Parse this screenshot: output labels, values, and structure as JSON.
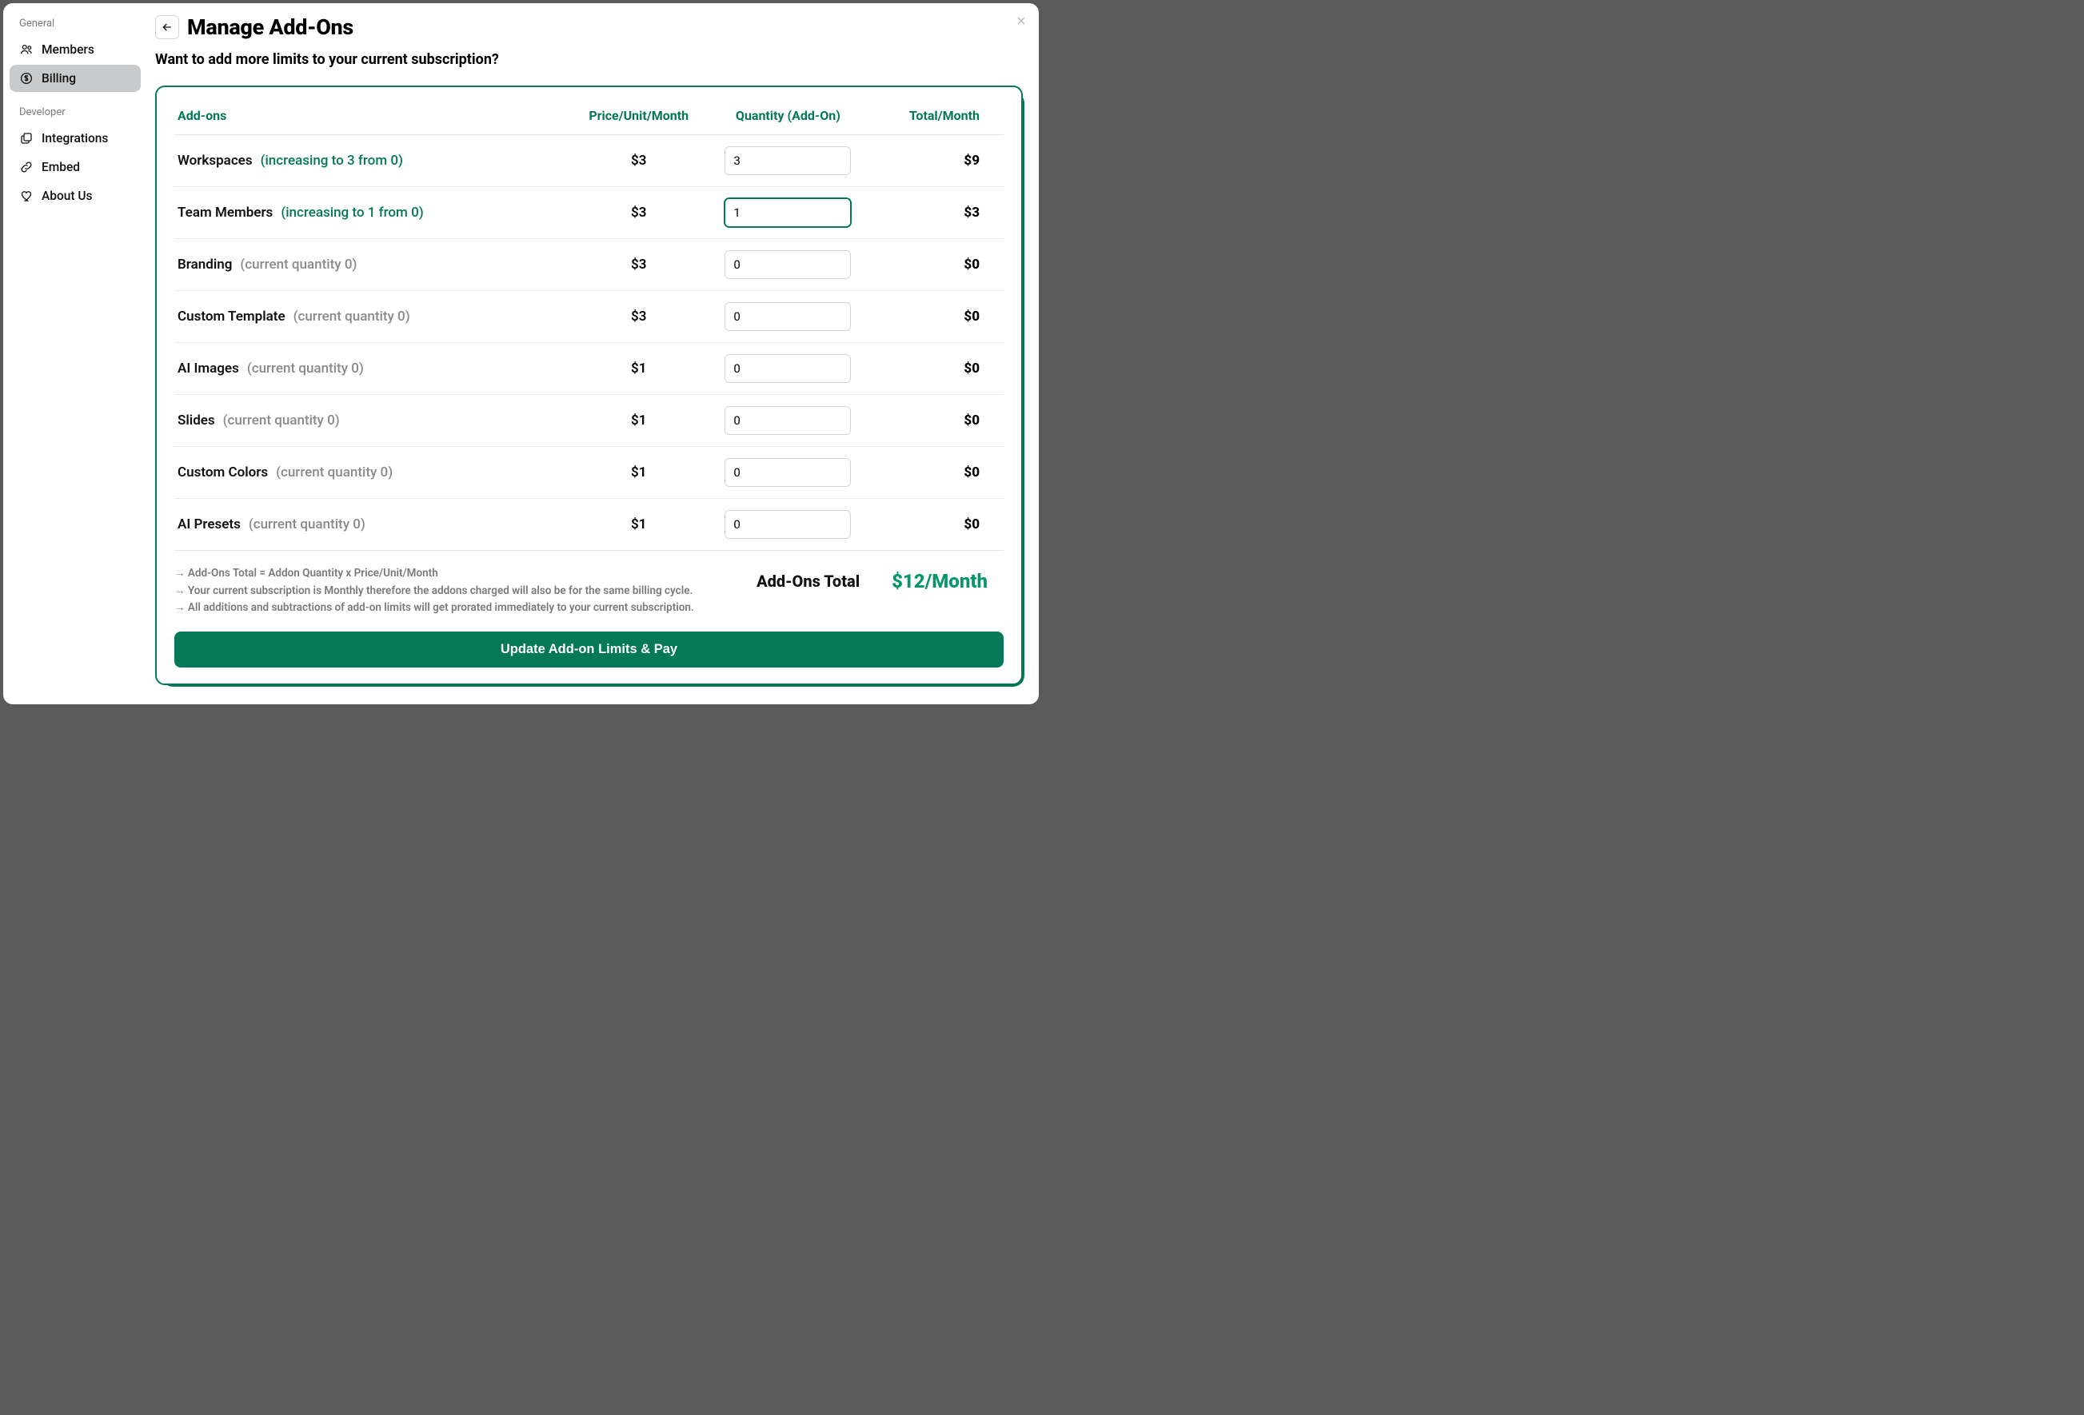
{
  "sidebar": {
    "sections": [
      {
        "label": "General",
        "items": [
          {
            "id": "members",
            "label": "Members",
            "icon": "users-icon",
            "active": false
          },
          {
            "id": "billing",
            "label": "Billing",
            "icon": "dollar-icon",
            "active": true
          }
        ]
      },
      {
        "label": "Developer",
        "items": [
          {
            "id": "integrations",
            "label": "Integrations",
            "icon": "stack-icon",
            "active": false
          },
          {
            "id": "embed",
            "label": "Embed",
            "icon": "link-icon",
            "active": false
          },
          {
            "id": "about",
            "label": "About Us",
            "icon": "heart-icon",
            "active": false
          }
        ]
      }
    ]
  },
  "header": {
    "title": "Manage Add-Ons",
    "subtitle": "Want to add more limits to your current subscription?"
  },
  "columns": {
    "addons": "Add-ons",
    "price": "Price/Unit/Month",
    "qty": "Quantity (Add-On)",
    "total": "Total/Month"
  },
  "rows": [
    {
      "name": "Workspaces",
      "note": "(increasing to 3 from 0)",
      "note_style": "green",
      "price": "$3",
      "qty": "3",
      "total": "$9",
      "focused": false,
      "down_disabled": false
    },
    {
      "name": "Team Members",
      "note": "(increasing to 1 from 0)",
      "note_style": "green",
      "price": "$3",
      "qty": "1",
      "total": "$3",
      "focused": true,
      "down_disabled": false
    },
    {
      "name": "Branding",
      "note": "(current quantity 0)",
      "note_style": "gray",
      "price": "$3",
      "qty": "0",
      "total": "$0",
      "focused": false,
      "down_disabled": true
    },
    {
      "name": "Custom Template",
      "note": "(current quantity 0)",
      "note_style": "gray",
      "price": "$3",
      "qty": "0",
      "total": "$0",
      "focused": false,
      "down_disabled": true
    },
    {
      "name": "AI Images",
      "note": "(current quantity 0)",
      "note_style": "gray",
      "price": "$1",
      "qty": "0",
      "total": "$0",
      "focused": false,
      "down_disabled": true
    },
    {
      "name": "Slides",
      "note": "(current quantity 0)",
      "note_style": "gray",
      "price": "$1",
      "qty": "0",
      "total": "$0",
      "focused": false,
      "down_disabled": true
    },
    {
      "name": "Custom Colors",
      "note": "(current quantity 0)",
      "note_style": "gray",
      "price": "$1",
      "qty": "0",
      "total": "$0",
      "focused": false,
      "down_disabled": true
    },
    {
      "name": "AI Presets",
      "note": "(current quantity 0)",
      "note_style": "gray",
      "price": "$1",
      "qty": "0",
      "total": "$0",
      "focused": false,
      "down_disabled": true
    }
  ],
  "footer": {
    "notes": [
      "→ Add-Ons Total = Addon Quantity x Price/Unit/Month",
      "→ Your current subscription is Monthly therefore the addons charged will also be for the same billing cycle.",
      "→ All additions and subtractions of add-on limits will get prorated immediately to your current subscription."
    ],
    "total_label": "Add-Ons Total",
    "total_value": "$12/Month",
    "button": "Update Add-on Limits & Pay"
  },
  "colors": {
    "accent": "#047857",
    "accent_light": "#059669",
    "text_muted": "#8a8a8a",
    "border": "#d3d3d3"
  }
}
